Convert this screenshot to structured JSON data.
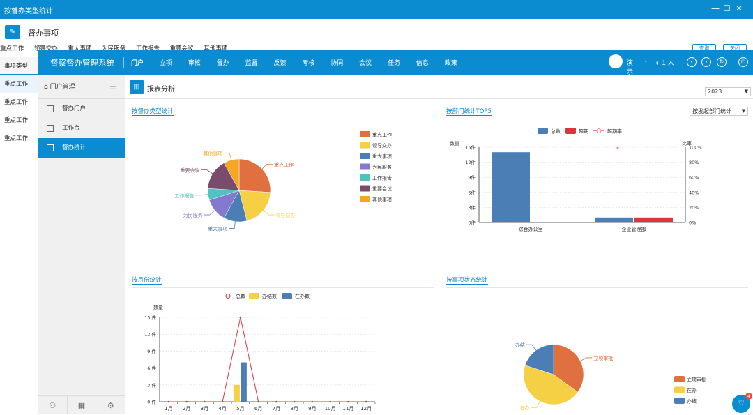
{
  "window": {
    "title": "按督办类型统计",
    "controls": [
      "—",
      "☐",
      "✕"
    ]
  },
  "subheader": {
    "title": "督办事项"
  },
  "tabs_behind": [
    "重点工作",
    "领导交办",
    "重大事项",
    "为民服务",
    "工作报告",
    "重要会议",
    "其他事项"
  ],
  "right_buttons": [
    "查询",
    "关闭"
  ],
  "left_list": {
    "header": "事项类型",
    "items": [
      "重点工作",
      "重点工作",
      "重点工作",
      "重点工作"
    ]
  },
  "topnav": {
    "brand": "督察督办管理系统",
    "items": [
      "门户",
      "立项",
      "审核",
      "督办",
      "监督",
      "反馈",
      "考核",
      "协同",
      "会议",
      "任务",
      "信息",
      "政策"
    ],
    "active": "门户",
    "user": "演示",
    "online": "1 人"
  },
  "sidebar": {
    "header": "门户管理",
    "menu": [
      {
        "label": "督办门户",
        "active": false
      },
      {
        "label": "工作台",
        "active": false
      },
      {
        "label": "督办统计",
        "active": true
      }
    ]
  },
  "main": {
    "title": "报表分析",
    "year": "2023",
    "sections": {
      "type_stats": "按督办类型统计",
      "dept_top5": "按部门统计TOP5",
      "dept_select": "按发起部门统计",
      "monthly": "按月份统计",
      "status": "按事项状态统计"
    }
  },
  "badge_count": "4",
  "colors": {
    "primary": "#0b8bd0",
    "orange": "#e07040",
    "yellow": "#f5d044",
    "blue": "#4a7eb5",
    "purple": "#8478cf",
    "teal": "#4fc3c0",
    "plum": "#7b4b6e",
    "gold": "#f5a623",
    "red": "#d9363e"
  },
  "chart_data": [
    {
      "type": "pie",
      "title": "按督办类型统计",
      "labels": [
        "重点工作",
        "领导交办",
        "重大事项",
        "为民服务",
        "工作报告",
        "重要会议",
        "其他事项"
      ],
      "values": [
        26,
        20,
        12,
        12,
        6,
        16,
        8
      ]
    },
    {
      "type": "bar",
      "title": "按部门统计TOP5",
      "categories": [
        "综合办公室",
        "企业管理部"
      ],
      "series": [
        {
          "name": "总数",
          "values": [
            14,
            1
          ]
        },
        {
          "name": "超期",
          "values": [
            0,
            1
          ]
        },
        {
          "name": "超期率",
          "values": [
            0,
            100
          ],
          "axis": "right",
          "kind": "line"
        }
      ],
      "ylabel": "数量",
      "ylabel_right": "比率",
      "ylim": [
        0,
        15
      ],
      "yticks": [
        "0件",
        "3件",
        "6件",
        "9件",
        "12件",
        "15件"
      ],
      "ylim_right": [
        0,
        100
      ],
      "yticks_right": [
        "0%",
        "20%",
        "40%",
        "60%",
        "80%",
        "100%"
      ]
    },
    {
      "type": "bar",
      "title": "按月份统计",
      "categories": [
        "1月",
        "2月",
        "3月",
        "4月",
        "5月",
        "6月",
        "7月",
        "8月",
        "9月",
        "10月",
        "11月",
        "12月"
      ],
      "series": [
        {
          "name": "总数",
          "values": [
            0,
            0,
            0,
            0,
            15,
            0,
            0,
            0,
            0,
            0,
            0,
            0
          ],
          "kind": "line"
        },
        {
          "name": "办结数",
          "values": [
            0,
            0,
            0,
            0,
            3,
            0,
            0,
            0,
            0,
            0,
            0,
            0
          ]
        },
        {
          "name": "在办数",
          "values": [
            0,
            0,
            0,
            0,
            7,
            0,
            0,
            0,
            0,
            0,
            0,
            0
          ]
        }
      ],
      "ylabel": "数量",
      "ylim": [
        0,
        15
      ],
      "yticks": [
        "0 件",
        "3 件",
        "6 件",
        "9 件",
        "12 件",
        "15 件"
      ]
    },
    {
      "type": "pie",
      "title": "按事项状态统计",
      "labels": [
        "立项审批",
        "在办",
        "办结"
      ],
      "values": [
        35,
        45,
        20
      ]
    }
  ]
}
